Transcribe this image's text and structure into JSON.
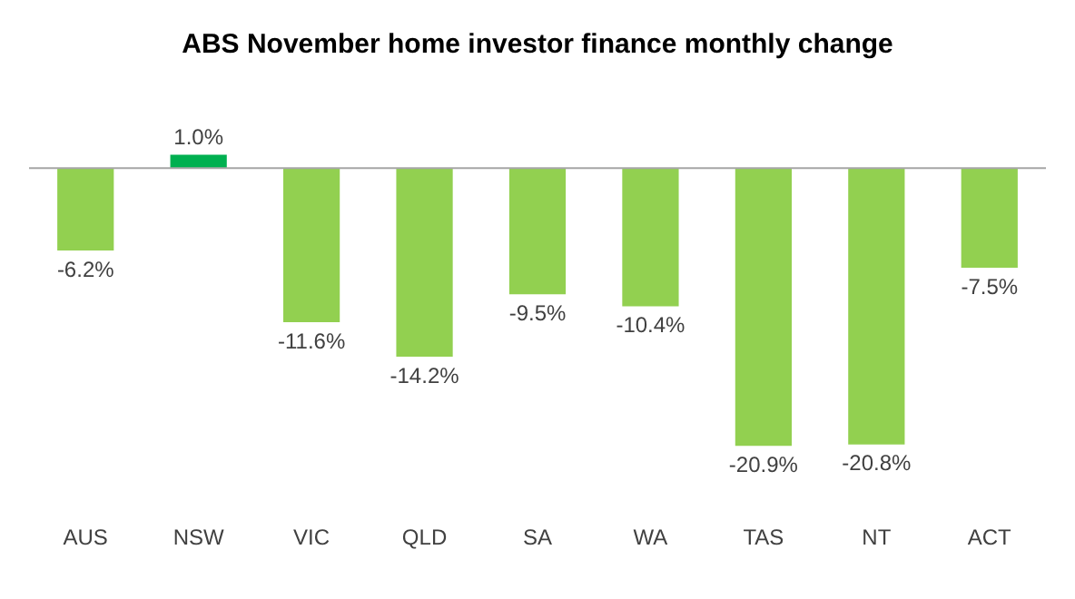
{
  "chart_data": {
    "type": "bar",
    "title": "ABS November home investor finance monthly change",
    "categories": [
      "AUS",
      "NSW",
      "VIC",
      "QLD",
      "SA",
      "WA",
      "TAS",
      "NT",
      "ACT"
    ],
    "values": [
      -6.2,
      1.0,
      -11.6,
      -14.2,
      -9.5,
      -10.4,
      -20.9,
      -20.8,
      -7.5
    ],
    "colors": [
      "#92d050",
      "#00b050",
      "#92d050",
      "#92d050",
      "#92d050",
      "#92d050",
      "#92d050",
      "#92d050",
      "#92d050"
    ],
    "value_labels": [
      "-6.2%",
      "1.0%",
      "-11.6%",
      "-14.2%",
      "-9.5%",
      "-10.4%",
      "-20.9%",
      "-20.8%",
      "-7.5%"
    ],
    "grid": false,
    "legend": false
  }
}
